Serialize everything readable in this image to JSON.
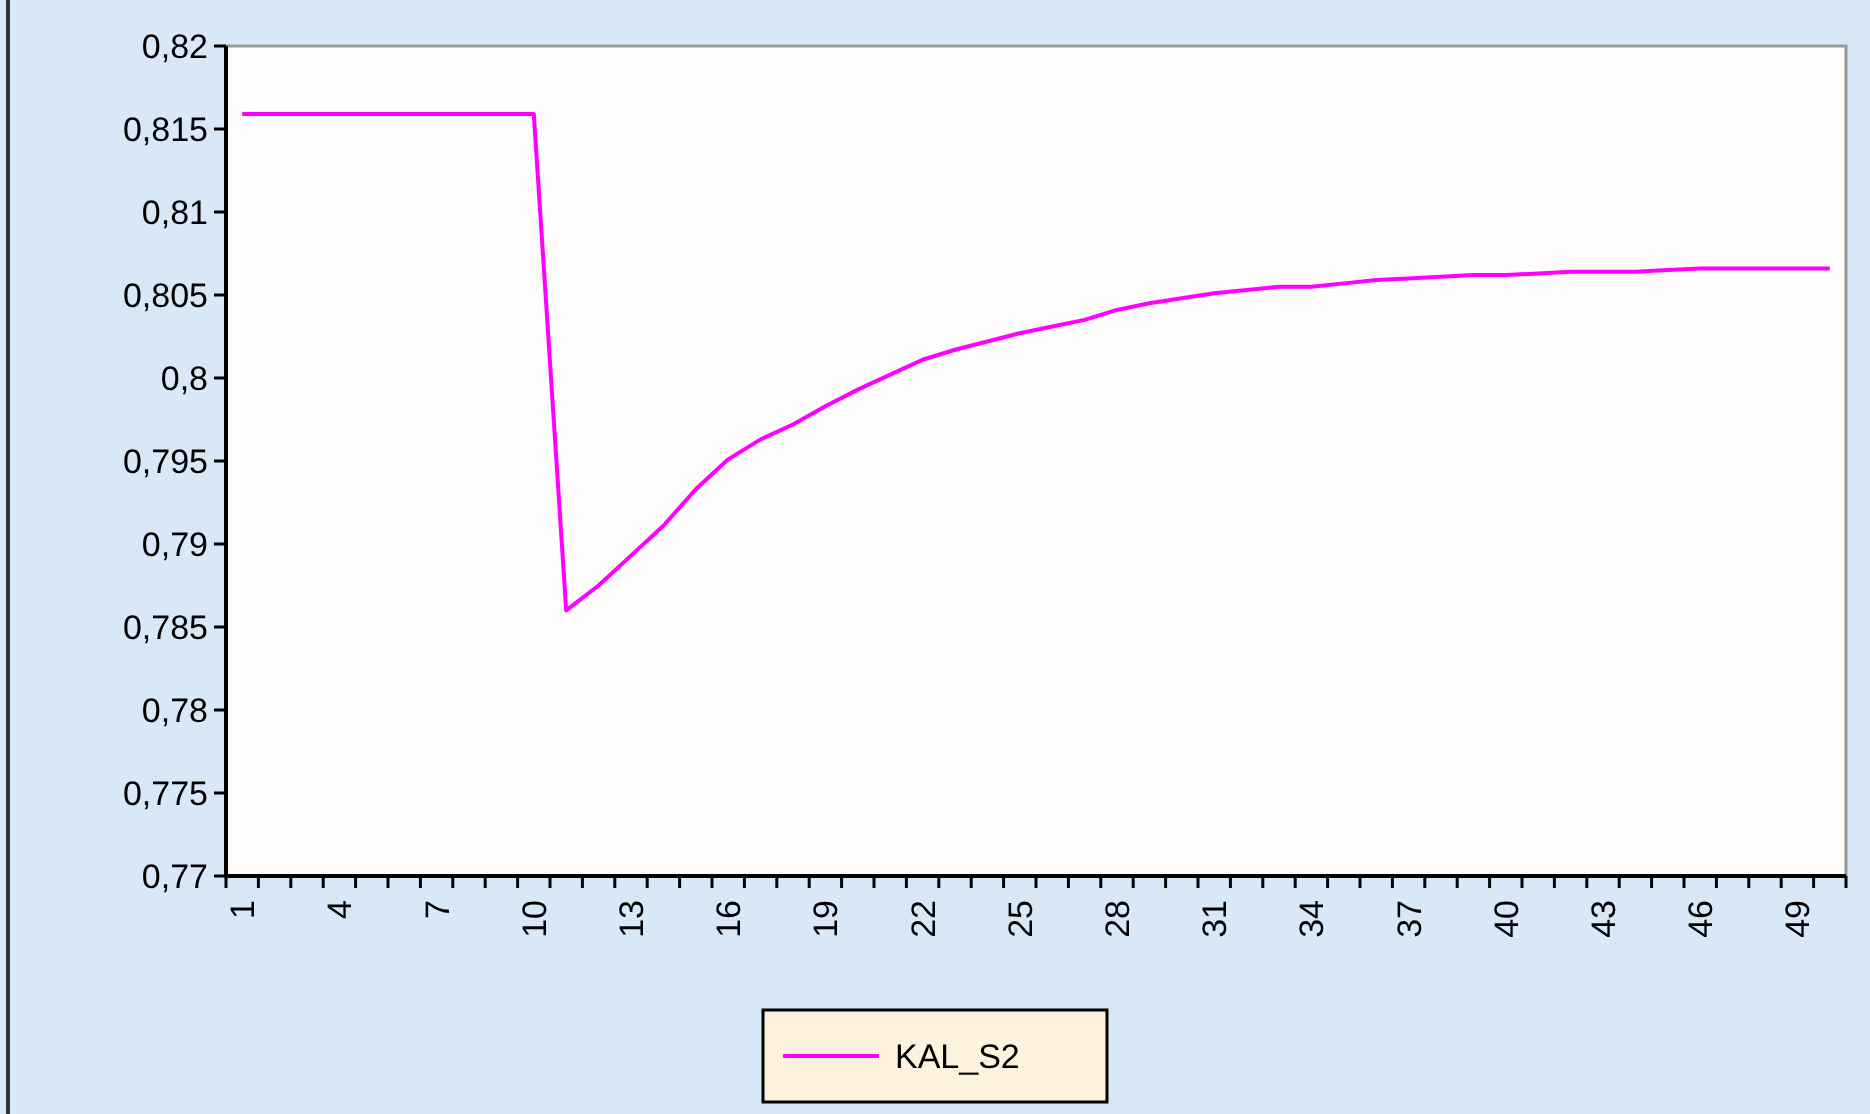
{
  "chart_data": {
    "type": "line",
    "categories": [
      "1",
      null,
      null,
      "4",
      null,
      null,
      "7",
      null,
      null,
      "10",
      null,
      null,
      "13",
      null,
      null,
      "16",
      null,
      null,
      "19",
      null,
      null,
      "22",
      null,
      null,
      "25",
      null,
      null,
      "28",
      null,
      null,
      "31",
      null,
      null,
      "34",
      null,
      null,
      "37",
      null,
      null,
      "40",
      null,
      null,
      "43",
      null,
      null,
      "46",
      null,
      null,
      "49",
      null
    ],
    "series": [
      {
        "name": "KAL_S2",
        "color": "#ff00ff",
        "values": [
          0.8159,
          0.8159,
          0.8159,
          0.8159,
          0.8159,
          0.8159,
          0.8159,
          0.8159,
          0.8159,
          0.8159,
          0.786,
          0.7875,
          0.7893,
          0.7911,
          0.7933,
          0.7951,
          0.7963,
          0.7972,
          0.7983,
          0.7993,
          0.8002,
          0.8011,
          0.8017,
          0.8022,
          0.8027,
          0.8031,
          0.8035,
          0.8041,
          0.8045,
          0.8048,
          0.8051,
          0.8053,
          0.8055,
          0.8055,
          0.8057,
          0.8059,
          0.806,
          0.8061,
          0.8062,
          0.8062,
          0.8063,
          0.8064,
          0.8064,
          0.8064,
          0.8065,
          0.8066,
          0.8066,
          0.8066,
          0.8066,
          0.8066
        ]
      }
    ],
    "ylim": [
      0.77,
      0.82
    ],
    "yticks": [
      {
        "value": 0.77,
        "label": "0,77"
      },
      {
        "value": 0.775,
        "label": "0,775"
      },
      {
        "value": 0.78,
        "label": "0,78"
      },
      {
        "value": 0.785,
        "label": "0,785"
      },
      {
        "value": 0.79,
        "label": "0,79"
      },
      {
        "value": 0.795,
        "label": "0,795"
      },
      {
        "value": 0.8,
        "label": "0,8"
      },
      {
        "value": 0.805,
        "label": "0,805"
      },
      {
        "value": 0.81,
        "label": "0,81"
      },
      {
        "value": 0.815,
        "label": "0,815"
      },
      {
        "value": 0.82,
        "label": "0,82"
      }
    ],
    "grid": false,
    "legend": "bottom",
    "marker": "none",
    "line_style": "solid"
  }
}
